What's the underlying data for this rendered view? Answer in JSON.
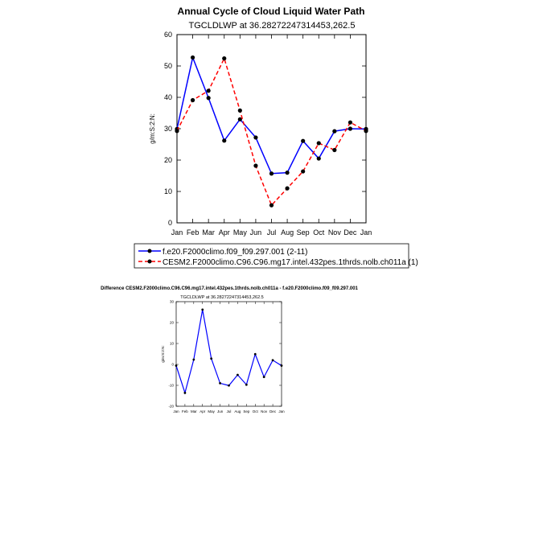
{
  "chart_data": [
    {
      "type": "line",
      "title": "Annual Cycle of Cloud Liquid Water Path",
      "subtitle": "TGCLDLWP at 36.28272247314453,262.5",
      "ylabel": "g/m:S:2:N:",
      "xlabel": "",
      "ylim": [
        0,
        60
      ],
      "yticks": [
        0,
        10,
        20,
        30,
        40,
        50,
        60
      ],
      "categories": [
        "Jan",
        "Feb",
        "Mar",
        "Apr",
        "May",
        "Jun",
        "Jul",
        "Aug",
        "Sep",
        "Oct",
        "Nov",
        "Dec",
        "Jan"
      ],
      "series": [
        {
          "name": "f.e20.F2000climo.f09_f09.297.001 (2-11)",
          "color": "#0000ff",
          "dash": "solid",
          "values": [
            29.9,
            52.7,
            39.8,
            26.2,
            33.0,
            27.2,
            15.7,
            16.0,
            26.1,
            20.5,
            29.2,
            30.0,
            29.9
          ]
        },
        {
          "name": "CESM2.F2000climo.C96.C96.mg17.intel.432pes.1thrds.nolb.ch011a (1)",
          "color": "#ff0000",
          "dash": "dashed",
          "values": [
            29.3,
            39.1,
            42.1,
            52.4,
            35.8,
            18.2,
            5.6,
            11.0,
            16.4,
            25.4,
            23.2,
            32.0,
            29.3
          ]
        }
      ]
    },
    {
      "type": "line",
      "title": "Difference CESM2.F2000climo.C96.C96.mg17.intel.432pes.1thrds.nolb.ch011a - f.e20.F2000climo.f09_f09.297.001",
      "subtitle": "TGCLDLWP at 36.28272247314453,262.5",
      "ylabel": "g/m:S:2:N:",
      "ylim": [
        -20,
        30
      ],
      "yticks": [
        -20,
        -10,
        0,
        10,
        20,
        30
      ],
      "categories": [
        "Jan",
        "Feb",
        "Mar",
        "Apr",
        "May",
        "Jun",
        "Jul",
        "Aug",
        "Sep",
        "Oct",
        "Nov",
        "Dec",
        "Jan"
      ],
      "series": [
        {
          "name": "Difference",
          "color": "#0000ff",
          "dash": "solid",
          "values": [
            -0.6,
            -13.6,
            2.3,
            26.2,
            2.8,
            -9.0,
            -10.1,
            -5.0,
            -9.7,
            4.9,
            -6.0,
            2.0,
            -0.6
          ]
        }
      ]
    }
  ]
}
